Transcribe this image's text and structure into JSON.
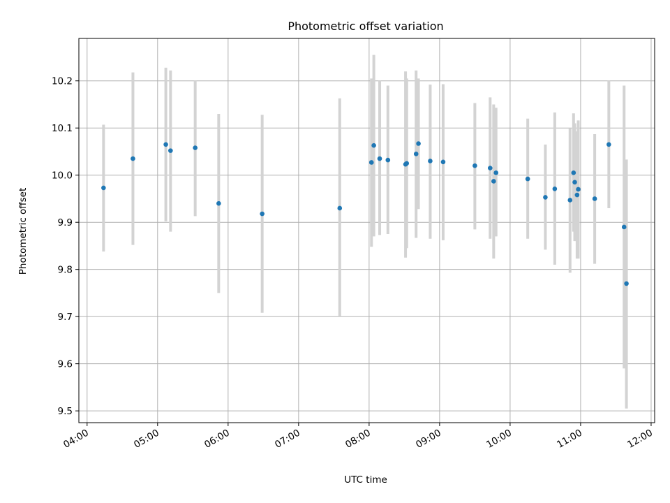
{
  "chart_data": {
    "type": "scatter",
    "title": "Photometric offset variation",
    "xlabel": "UTC time",
    "ylabel": "Photometric offset",
    "grid": true,
    "xlim": [
      "03:53",
      "12:03"
    ],
    "ylim": [
      9.475,
      10.29
    ],
    "x_ticks": [
      "04:00",
      "05:00",
      "06:00",
      "07:00",
      "08:00",
      "09:00",
      "10:00",
      "11:00",
      "12:00"
    ],
    "y_ticks": [
      "9.5",
      "9.6",
      "9.7",
      "9.8",
      "9.9",
      "10.0",
      "10.1",
      "10.2"
    ],
    "error_bar_color": "#d3d3d3",
    "marker_color": "#1f77b4",
    "points": [
      {
        "x": "04:14",
        "y": 9.973,
        "ylow": 9.838,
        "yhigh": 10.107
      },
      {
        "x": "04:39",
        "y": 10.035,
        "ylow": 9.852,
        "yhigh": 10.218
      },
      {
        "x": "05:07",
        "y": 10.065,
        "ylow": 9.902,
        "yhigh": 10.228
      },
      {
        "x": "05:11",
        "y": 10.052,
        "ylow": 9.88,
        "yhigh": 10.222
      },
      {
        "x": "05:32",
        "y": 10.058,
        "ylow": 9.913,
        "yhigh": 10.2
      },
      {
        "x": "05:52",
        "y": 9.94,
        "ylow": 9.75,
        "yhigh": 10.13
      },
      {
        "x": "06:29",
        "y": 9.918,
        "ylow": 9.708,
        "yhigh": 10.128
      },
      {
        "x": "07:35",
        "y": 9.93,
        "ylow": 9.7,
        "yhigh": 10.163
      },
      {
        "x": "08:02",
        "y": 10.027,
        "ylow": 9.848,
        "yhigh": 10.205
      },
      {
        "x": "08:04",
        "y": 10.063,
        "ylow": 9.87,
        "yhigh": 10.255
      },
      {
        "x": "08:09",
        "y": 10.035,
        "ylow": 9.873,
        "yhigh": 10.2
      },
      {
        "x": "08:16",
        "y": 10.032,
        "ylow": 9.875,
        "yhigh": 10.19
      },
      {
        "x": "08:31",
        "y": 10.023,
        "ylow": 9.825,
        "yhigh": 10.22
      },
      {
        "x": "08:32",
        "y": 10.025,
        "ylow": 9.845,
        "yhigh": 10.205
      },
      {
        "x": "08:40",
        "y": 10.045,
        "ylow": 9.867,
        "yhigh": 10.222
      },
      {
        "x": "08:42",
        "y": 10.067,
        "ylow": 9.928,
        "yhigh": 10.205
      },
      {
        "x": "08:52",
        "y": 10.03,
        "ylow": 9.865,
        "yhigh": 10.192
      },
      {
        "x": "09:03",
        "y": 10.028,
        "ylow": 9.862,
        "yhigh": 10.193
      },
      {
        "x": "09:30",
        "y": 10.02,
        "ylow": 9.885,
        "yhigh": 10.153
      },
      {
        "x": "09:43",
        "y": 10.015,
        "ylow": 9.865,
        "yhigh": 10.165
      },
      {
        "x": "09:46",
        "y": 9.987,
        "ylow": 9.823,
        "yhigh": 10.15
      },
      {
        "x": "09:48",
        "y": 10.005,
        "ylow": 9.87,
        "yhigh": 10.143
      },
      {
        "x": "10:15",
        "y": 9.992,
        "ylow": 9.865,
        "yhigh": 10.12
      },
      {
        "x": "10:30",
        "y": 9.953,
        "ylow": 9.842,
        "yhigh": 10.065
      },
      {
        "x": "10:38",
        "y": 9.971,
        "ylow": 9.81,
        "yhigh": 10.133
      },
      {
        "x": "10:51",
        "y": 9.947,
        "ylow": 9.793,
        "yhigh": 10.1
      },
      {
        "x": "10:54",
        "y": 10.005,
        "ylow": 9.88,
        "yhigh": 10.131
      },
      {
        "x": "10:55",
        "y": 9.985,
        "ylow": 9.86,
        "yhigh": 10.11
      },
      {
        "x": "10:57",
        "y": 9.958,
        "ylow": 9.823,
        "yhigh": 10.093
      },
      {
        "x": "10:58",
        "y": 9.97,
        "ylow": 9.823,
        "yhigh": 10.116
      },
      {
        "x": "11:12",
        "y": 9.95,
        "ylow": 9.812,
        "yhigh": 10.087
      },
      {
        "x": "11:24",
        "y": 10.065,
        "ylow": 9.93,
        "yhigh": 10.2
      },
      {
        "x": "11:37",
        "y": 9.89,
        "ylow": 9.59,
        "yhigh": 10.19
      },
      {
        "x": "11:39",
        "y": 9.77,
        "ylow": 9.505,
        "yhigh": 10.033
      }
    ]
  }
}
